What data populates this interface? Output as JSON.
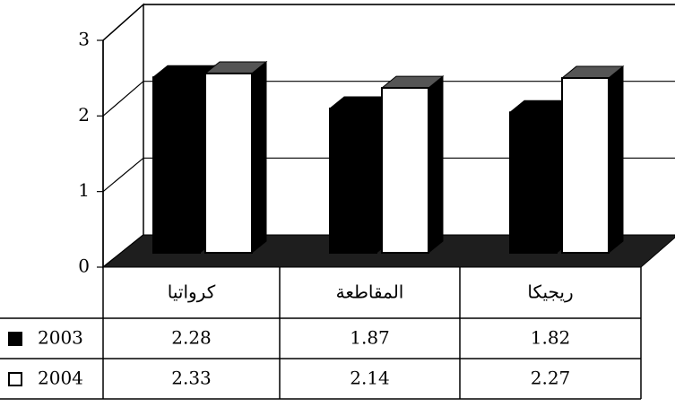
{
  "chart_data": {
    "type": "bar3d",
    "categories": [
      "كرواتيا",
      "المقاطعة",
      "ريجيكا"
    ],
    "series": [
      {
        "name": "2003",
        "color": "#000000",
        "values": [
          2.28,
          1.87,
          1.82
        ]
      },
      {
        "name": "2004",
        "color": "#ffffff",
        "values": [
          2.33,
          2.14,
          2.27
        ]
      }
    ],
    "ylim": [
      0,
      3
    ],
    "yticks": [
      0,
      1,
      2,
      3
    ],
    "grid": true
  }
}
